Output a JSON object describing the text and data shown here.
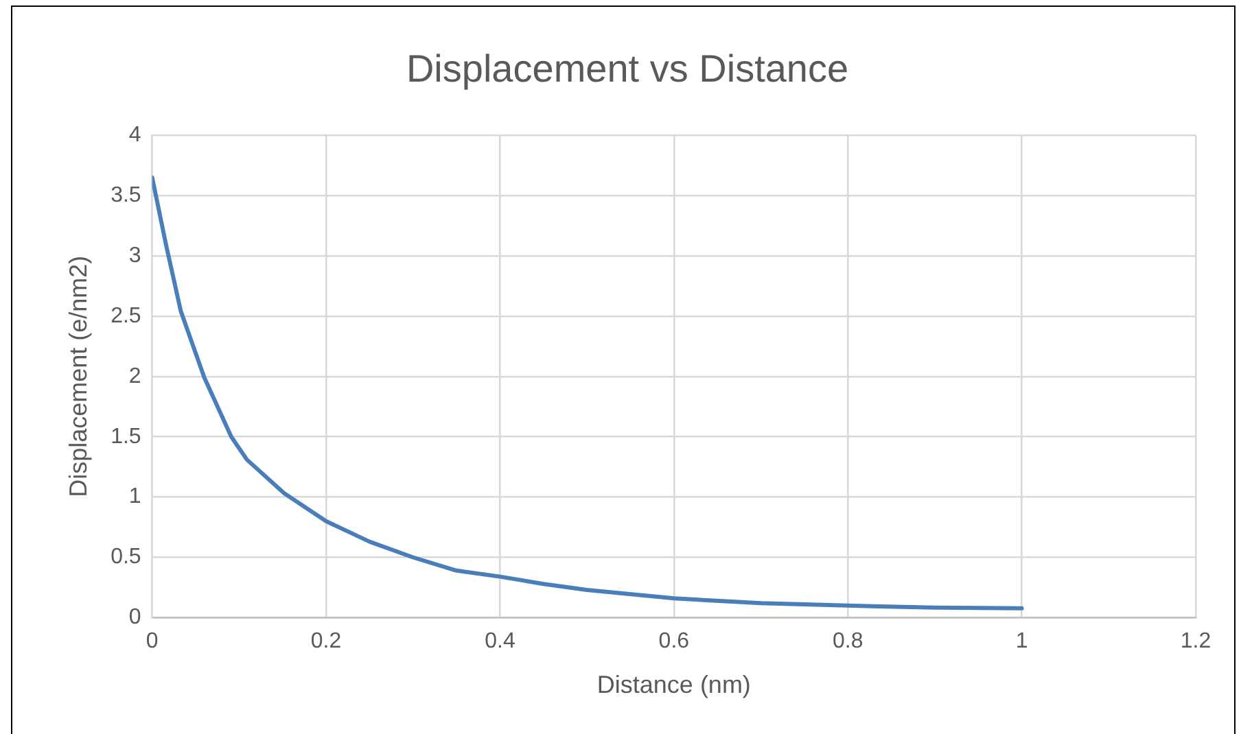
{
  "chart_data": {
    "type": "line",
    "title": "Displacement vs Distance",
    "xlabel": "Distance (nm)",
    "ylabel": "Displacement (e/nm2)",
    "x": [
      0,
      0.016,
      0.033,
      0.06,
      0.091,
      0.109,
      0.152,
      0.2,
      0.25,
      0.3,
      0.35,
      0.4,
      0.45,
      0.5,
      0.6,
      0.7,
      0.8,
      0.9,
      1
    ],
    "series": [
      {
        "color": "#4a7ebb",
        "values": [
          3.65,
          3.09,
          2.54,
          1.99,
          1.5,
          1.31,
          1.03,
          0.8,
          0.63,
          0.5,
          0.39,
          0.34,
          0.28,
          0.23,
          0.16,
          0.12,
          0.1,
          0.083,
          0.078
        ]
      }
    ],
    "xlim": [
      0,
      1.2
    ],
    "xticks": [
      0,
      0.2,
      0.4,
      0.6,
      0.8,
      1,
      1.2
    ],
    "ylim": [
      0,
      4
    ],
    "yticks": [
      0,
      0.5,
      1,
      1.5,
      2,
      2.5,
      3,
      3.5,
      4
    ],
    "grid": true,
    "legend": false,
    "marker": "none",
    "line_style": "solid"
  }
}
